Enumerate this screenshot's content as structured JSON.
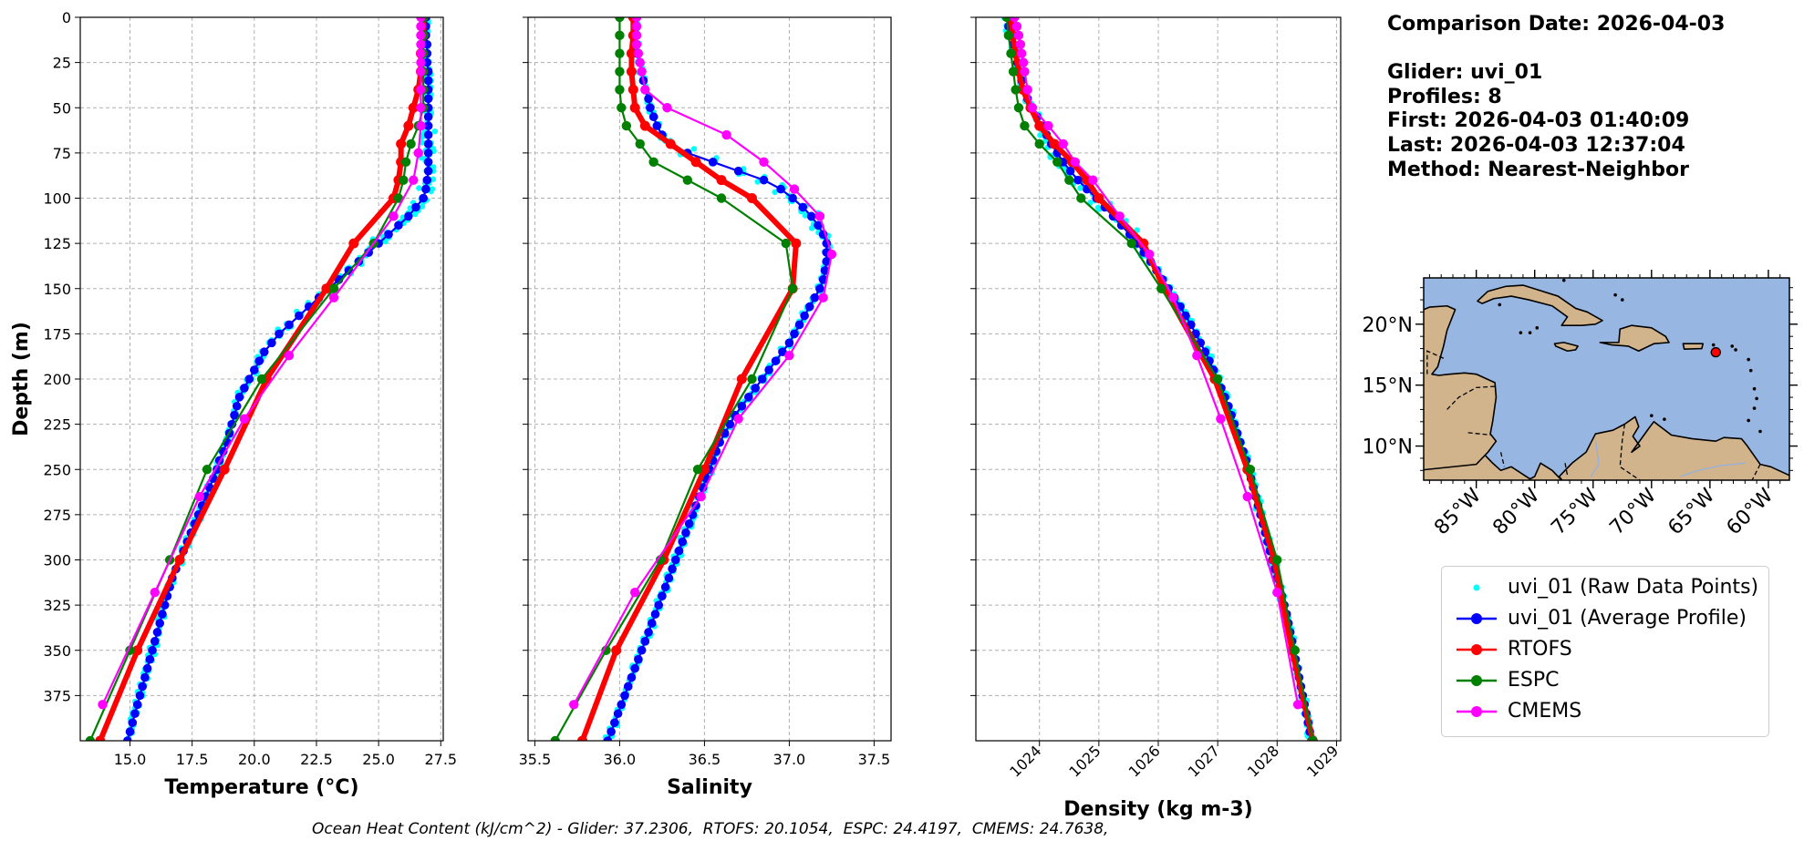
{
  "info": {
    "comparison": "Comparison Date: 2026-04-03",
    "glider": "Glider: uvi_01",
    "profiles": "Profiles: 8",
    "first": "First: 2026-04-03 01:40:09",
    "last": "Last: 2026-04-03 12:37:04",
    "method": "Method: Nearest-Neighbor"
  },
  "footer": "Ocean Heat Content (kJ/cm^2) - Glider: 37.2306,  RTOFS: 20.1054,  ESPC: 24.4197,  CMEMS: 24.7638,",
  "legend": [
    {
      "label": "uvi_01 (Raw Data Points)",
      "color": "#00ffff",
      "style": "dot"
    },
    {
      "label": "uvi_01 (Average Profile)",
      "color": "#0000ff",
      "style": "line-marker"
    },
    {
      "label": "RTOFS",
      "color": "#ff0000",
      "style": "line-marker"
    },
    {
      "label": "ESPC",
      "color": "#008000",
      "style": "line-marker"
    },
    {
      "label": "CMEMS",
      "color": "#ff00ff",
      "style": "line-marker"
    }
  ],
  "map": {
    "lat_ticks": [
      "20°N",
      "15°N",
      "10°N"
    ],
    "lon_ticks": [
      "85°W",
      "80°W",
      "75°W",
      "70°W",
      "65°W",
      "60°W"
    ],
    "ocean_color": "#97b6e1",
    "land_color": "#d2b48c",
    "glider_marker": {
      "lon": -64.5,
      "lat": 17.7,
      "color": "#ff0000"
    }
  },
  "chart_data": [
    {
      "type": "line",
      "xlabel": "Temperature (°C)",
      "ylabel": "Depth (m)",
      "xlim": [
        13.0,
        27.6
      ],
      "ylim": [
        400,
        0
      ],
      "xticks": [
        "15.0",
        "17.5",
        "20.0",
        "22.5",
        "25.0",
        "27.5"
      ],
      "yticks": [
        "0",
        "25",
        "50",
        "75",
        "100",
        "125",
        "150",
        "175",
        "200",
        "225",
        "250",
        "275",
        "300",
        "325",
        "350",
        "375"
      ],
      "grid": true,
      "series": [
        {
          "name": "uvi_01 (Average Profile)",
          "color": "#0000ff",
          "style": "line-marker",
          "depth": [
            0,
            5,
            10,
            15,
            20,
            25,
            30,
            35,
            40,
            45,
            50,
            55,
            60,
            65,
            70,
            75,
            80,
            85,
            90,
            95,
            100,
            105,
            110,
            115,
            120,
            125,
            130,
            135,
            140,
            145,
            150,
            155,
            160,
            165,
            170,
            175,
            180,
            185,
            190,
            195,
            200,
            205,
            210,
            215,
            220,
            225,
            230,
            235,
            240,
            245,
            250,
            255,
            260,
            265,
            270,
            275,
            280,
            285,
            290,
            295,
            300,
            305,
            310,
            315,
            320,
            325,
            330,
            335,
            340,
            345,
            350,
            355,
            360,
            365,
            370,
            375,
            380,
            385,
            390,
            395,
            400
          ],
          "values": [
            26.9,
            26.9,
            26.9,
            26.95,
            26.95,
            26.95,
            27.0,
            27.0,
            27.0,
            27.0,
            27.0,
            27.0,
            27.0,
            27.0,
            27.0,
            27.0,
            27.0,
            27.0,
            26.95,
            26.9,
            26.8,
            26.5,
            26.2,
            25.8,
            25.4,
            25.0,
            24.6,
            24.2,
            23.8,
            23.4,
            23.0,
            22.6,
            22.2,
            21.8,
            21.4,
            21.0,
            20.7,
            20.4,
            20.2,
            20.0,
            19.8,
            19.6,
            19.4,
            19.3,
            19.2,
            19.1,
            19.0,
            18.9,
            18.75,
            18.6,
            18.5,
            18.35,
            18.2,
            18.05,
            17.9,
            17.75,
            17.6,
            17.45,
            17.3,
            17.15,
            17.0,
            16.85,
            16.7,
            16.6,
            16.5,
            16.4,
            16.3,
            16.2,
            16.1,
            16.0,
            15.9,
            15.8,
            15.7,
            15.6,
            15.5,
            15.4,
            15.3,
            15.2,
            15.1,
            15.0,
            14.9
          ]
        },
        {
          "name": "RTOFS",
          "color": "#ff0000",
          "style": "line-marker",
          "depth": [
            0,
            10,
            20,
            30,
            40,
            50,
            60,
            70,
            80,
            90,
            100,
            125,
            150,
            200,
            250,
            300,
            350,
            400
          ],
          "values": [
            26.8,
            26.8,
            26.7,
            26.7,
            26.6,
            26.4,
            26.2,
            25.9,
            25.9,
            25.8,
            25.6,
            24.0,
            22.9,
            20.5,
            18.8,
            17.0,
            15.3,
            13.8
          ]
        },
        {
          "name": "ESPC",
          "color": "#008000",
          "style": "line-marker",
          "depth": [
            0,
            10,
            20,
            30,
            40,
            50,
            60,
            70,
            80,
            90,
            100,
            125,
            150,
            200,
            250,
            300,
            350,
            400
          ],
          "values": [
            26.8,
            26.8,
            26.8,
            26.8,
            26.8,
            26.8,
            26.6,
            26.3,
            26.1,
            26.0,
            25.8,
            24.8,
            23.2,
            20.3,
            18.1,
            16.6,
            15.0,
            13.4
          ]
        },
        {
          "name": "CMEMS",
          "color": "#ff00ff",
          "style": "line-marker",
          "depth": [
            0,
            5,
            10,
            15,
            20,
            25,
            30,
            40,
            50,
            60,
            75,
            90,
            110,
            155,
            187,
            222,
            265,
            318,
            380
          ],
          "values": [
            26.7,
            26.7,
            26.7,
            26.7,
            26.7,
            26.7,
            26.7,
            26.7,
            26.7,
            26.7,
            26.6,
            26.4,
            25.6,
            23.2,
            21.4,
            19.6,
            17.8,
            16.0,
            13.9
          ]
        }
      ]
    },
    {
      "type": "line",
      "xlabel": "Salinity",
      "xlim": [
        35.46,
        37.6
      ],
      "ylim": [
        400,
        0
      ],
      "xticks": [
        "35.5",
        "36.0",
        "36.5",
        "37.0",
        "37.5"
      ],
      "grid": true,
      "series": [
        {
          "name": "uvi_01 (Average Profile)",
          "color": "#0000ff",
          "style": "line-marker",
          "depth": [
            0,
            5,
            10,
            15,
            20,
            25,
            30,
            35,
            40,
            45,
            50,
            55,
            60,
            65,
            70,
            75,
            80,
            85,
            90,
            95,
            100,
            105,
            110,
            115,
            120,
            125,
            130,
            135,
            140,
            145,
            150,
            155,
            160,
            165,
            170,
            175,
            180,
            185,
            190,
            195,
            200,
            205,
            210,
            215,
            220,
            225,
            230,
            235,
            240,
            245,
            250,
            255,
            260,
            265,
            270,
            275,
            280,
            285,
            290,
            295,
            300,
            305,
            310,
            315,
            320,
            325,
            330,
            335,
            340,
            345,
            350,
            355,
            360,
            365,
            370,
            375,
            380,
            385,
            390,
            395,
            400
          ],
          "values": [
            36.1,
            36.1,
            36.1,
            36.1,
            36.1,
            36.12,
            36.13,
            36.14,
            36.15,
            36.17,
            36.18,
            36.2,
            36.22,
            36.25,
            36.3,
            36.4,
            36.55,
            36.7,
            36.85,
            36.95,
            37.02,
            37.08,
            37.13,
            37.17,
            37.2,
            37.22,
            37.22,
            37.22,
            37.21,
            37.2,
            37.18,
            37.15,
            37.12,
            37.09,
            37.06,
            37.03,
            37.0,
            36.96,
            36.92,
            36.88,
            36.84,
            36.8,
            36.76,
            36.72,
            36.68,
            36.65,
            36.62,
            36.59,
            36.57,
            36.55,
            36.53,
            36.51,
            36.49,
            36.47,
            36.45,
            36.43,
            36.41,
            36.39,
            36.37,
            36.35,
            36.33,
            36.31,
            36.29,
            36.27,
            36.25,
            36.23,
            36.21,
            36.19,
            36.17,
            36.15,
            36.13,
            36.11,
            36.09,
            36.07,
            36.05,
            36.03,
            36.01,
            35.99,
            35.97,
            35.95,
            35.93
          ]
        },
        {
          "name": "RTOFS",
          "color": "#ff0000",
          "style": "line-marker",
          "depth": [
            0,
            10,
            20,
            30,
            40,
            50,
            60,
            70,
            80,
            90,
            100,
            125,
            150,
            200,
            250,
            300,
            350,
            400
          ],
          "values": [
            36.08,
            36.08,
            36.07,
            36.07,
            36.08,
            36.09,
            36.15,
            36.3,
            36.45,
            36.6,
            36.78,
            37.04,
            37.02,
            36.72,
            36.5,
            36.26,
            35.98,
            35.78
          ]
        },
        {
          "name": "ESPC",
          "color": "#008000",
          "style": "line-marker",
          "depth": [
            0,
            10,
            20,
            30,
            40,
            50,
            60,
            70,
            80,
            90,
            100,
            125,
            150,
            200,
            250,
            300,
            350,
            400
          ],
          "values": [
            36.0,
            36.0,
            36.0,
            36.0,
            36.0,
            36.01,
            36.04,
            36.12,
            36.2,
            36.4,
            36.6,
            36.98,
            37.02,
            36.78,
            36.46,
            36.24,
            35.92,
            35.62
          ]
        },
        {
          "name": "CMEMS",
          "color": "#ff00ff",
          "style": "line-marker",
          "depth": [
            0,
            5,
            10,
            15,
            20,
            25,
            30,
            40,
            50,
            65,
            80,
            95,
            110,
            131,
            155,
            187,
            222,
            265,
            318,
            380
          ],
          "values": [
            36.1,
            36.1,
            36.1,
            36.1,
            36.11,
            36.12,
            36.13,
            36.15,
            36.28,
            36.63,
            36.85,
            37.03,
            37.18,
            37.25,
            37.2,
            37.0,
            36.7,
            36.48,
            36.09,
            35.73
          ]
        }
      ]
    },
    {
      "type": "line",
      "xlabel": "Density (kg m-3)",
      "xlim": [
        1022.93,
        1029.07
      ],
      "ylim": [
        400,
        0
      ],
      "xticks": [
        "1024",
        "1025",
        "1026",
        "1027",
        "1028",
        "1029"
      ],
      "grid": true,
      "series": [
        {
          "name": "uvi_01 (Average Profile)",
          "color": "#0000ff",
          "style": "line-marker",
          "depth": [
            0,
            5,
            10,
            15,
            20,
            25,
            30,
            35,
            40,
            45,
            50,
            55,
            60,
            65,
            70,
            75,
            80,
            85,
            90,
            95,
            100,
            105,
            110,
            115,
            120,
            125,
            130,
            135,
            140,
            145,
            150,
            155,
            160,
            165,
            170,
            175,
            180,
            185,
            190,
            195,
            200,
            205,
            210,
            215,
            220,
            225,
            230,
            235,
            240,
            245,
            250,
            255,
            260,
            265,
            270,
            275,
            280,
            285,
            290,
            295,
            300,
            305,
            310,
            315,
            320,
            325,
            330,
            335,
            340,
            345,
            350,
            355,
            360,
            365,
            370,
            375,
            380,
            385,
            390,
            395,
            400
          ],
          "values": [
            1023.45,
            1023.48,
            1023.52,
            1023.56,
            1023.6,
            1023.63,
            1023.66,
            1023.7,
            1023.74,
            1023.8,
            1023.88,
            1023.96,
            1024.04,
            1024.12,
            1024.2,
            1024.3,
            1024.4,
            1024.52,
            1024.65,
            1024.8,
            1024.96,
            1025.1,
            1025.24,
            1025.38,
            1025.52,
            1025.65,
            1025.76,
            1025.87,
            1025.97,
            1026.07,
            1026.17,
            1026.27,
            1026.37,
            1026.46,
            1026.55,
            1026.63,
            1026.71,
            1026.79,
            1026.86,
            1026.93,
            1027.0,
            1027.06,
            1027.12,
            1027.18,
            1027.23,
            1027.28,
            1027.33,
            1027.38,
            1027.43,
            1027.48,
            1027.52,
            1027.56,
            1027.6,
            1027.64,
            1027.68,
            1027.72,
            1027.76,
            1027.8,
            1027.84,
            1027.88,
            1027.92,
            1027.96,
            1028.0,
            1028.04,
            1028.08,
            1028.12,
            1028.16,
            1028.19,
            1028.22,
            1028.25,
            1028.28,
            1028.31,
            1028.34,
            1028.37,
            1028.4,
            1028.43,
            1028.46,
            1028.49,
            1028.52,
            1028.55,
            1028.58
          ]
        },
        {
          "name": "RTOFS",
          "color": "#ff0000",
          "style": "line-marker",
          "depth": [
            0,
            10,
            20,
            30,
            40,
            50,
            60,
            70,
            80,
            90,
            100,
            125,
            150,
            200,
            250,
            300,
            350,
            400
          ],
          "values": [
            1023.52,
            1023.55,
            1023.6,
            1023.65,
            1023.72,
            1023.85,
            1024.0,
            1024.25,
            1024.55,
            1024.8,
            1025.0,
            1025.75,
            1026.1,
            1026.95,
            1027.5,
            1027.95,
            1028.25,
            1028.6
          ]
        },
        {
          "name": "ESPC",
          "color": "#008000",
          "style": "line-marker",
          "depth": [
            0,
            10,
            20,
            30,
            40,
            50,
            60,
            70,
            80,
            90,
            100,
            125,
            150,
            200,
            250,
            300,
            350,
            400
          ],
          "values": [
            1023.45,
            1023.48,
            1023.52,
            1023.56,
            1023.6,
            1023.65,
            1023.75,
            1024.0,
            1024.3,
            1024.5,
            1024.7,
            1025.55,
            1026.05,
            1027.0,
            1027.55,
            1028.0,
            1028.3,
            1028.6
          ]
        },
        {
          "name": "CMEMS",
          "color": "#ff00ff",
          "style": "line-marker",
          "depth": [
            0,
            5,
            10,
            15,
            20,
            25,
            30,
            40,
            50,
            60,
            70,
            80,
            90,
            110,
            131,
            155,
            187,
            222,
            265,
            318,
            380
          ],
          "values": [
            1023.58,
            1023.62,
            1023.65,
            1023.68,
            1023.7,
            1023.73,
            1023.75,
            1023.8,
            1023.88,
            1024.15,
            1024.4,
            1024.6,
            1024.9,
            1025.35,
            1025.85,
            1026.25,
            1026.65,
            1027.05,
            1027.5,
            1028.0,
            1028.35
          ]
        }
      ]
    }
  ]
}
